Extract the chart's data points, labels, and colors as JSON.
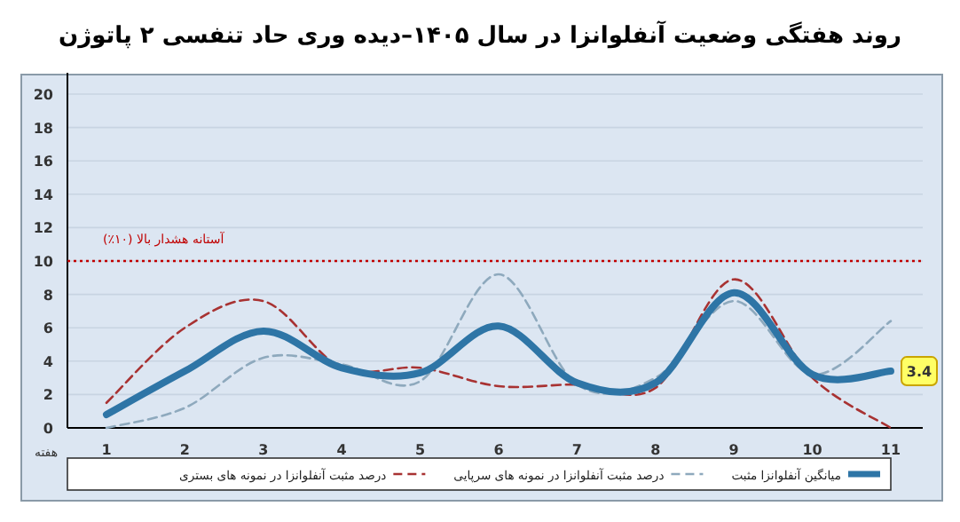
{
  "chart_data": {
    "type": "line",
    "title": "روند هفتگی وضعیت آنفلوانزا در سال ۱۴۰۵–دیده وری حاد تنفسی ۲ پاتوژن",
    "xlabel": "هفته",
    "categories": [
      "1",
      "2",
      "3",
      "4",
      "5",
      "6",
      "7",
      "8",
      "9",
      "10",
      "11"
    ],
    "ylim": [
      0,
      20
    ],
    "yticks": [
      0,
      2,
      4,
      6,
      8,
      10,
      12,
      14,
      16,
      18,
      20
    ],
    "grid": "y",
    "legend": "bottom",
    "marker": "none",
    "ref_lines": [
      {
        "axis": "y",
        "value": 10,
        "label": "آستانه هشدار بالا (۱۰٪)",
        "color": "#c00000",
        "line_style": "dotted"
      }
    ],
    "series": [
      {
        "name": "میانگین آنفلوانزا مثبت",
        "color": "#2e75a6",
        "line_style": "solid",
        "values": [
          0.8,
          3.4,
          5.8,
          3.6,
          3.3,
          6.1,
          2.7,
          2.7,
          8.1,
          3.2,
          3.4
        ],
        "value_labels": [
          null,
          null,
          null,
          null,
          null,
          null,
          null,
          null,
          null,
          null,
          "3.4"
        ]
      },
      {
        "name": "درصد مثبت آنفلوانزا در نمونه های سرپایی",
        "color": "#8ea9bd",
        "line_style": "dashed",
        "values": [
          0,
          1.2,
          4.2,
          3.8,
          2.8,
          9.2,
          2.6,
          3.0,
          7.6,
          3.2,
          6.4
        ]
      },
      {
        "name": "درصد مثبت آنفلوانزا در نمونه های بستری",
        "color": "#a83232",
        "line_style": "dashed",
        "values": [
          1.5,
          6.0,
          7.6,
          3.6,
          3.6,
          2.5,
          2.6,
          2.4,
          8.9,
          3.0,
          0
        ]
      }
    ]
  }
}
